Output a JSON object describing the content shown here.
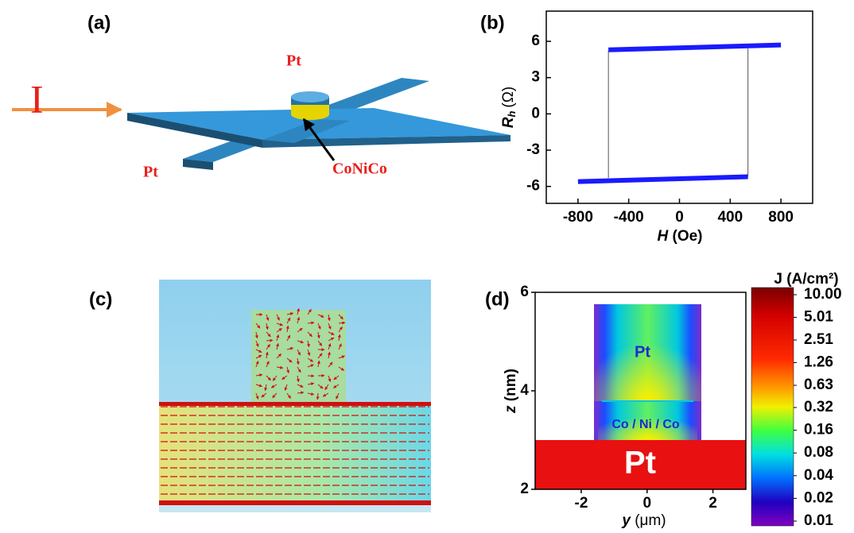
{
  "panel_labels": [
    "(a)",
    "(b)",
    "(c)",
    "(d)"
  ],
  "diagram": {
    "current_label": "I",
    "pt_top": "Pt",
    "pt_left": "Pt",
    "stack_label": "CoNiCo"
  },
  "chart_data": [
    {
      "type": "line",
      "x_label_symbol": "H",
      "x_label_unit": "(Oe)",
      "y_label_symbol": "R",
      "y_label_subscript": "h",
      "y_label_unit": "(Ω)",
      "xlim": [
        -1050,
        1050
      ],
      "xticks": [
        -800,
        -400,
        0,
        400,
        800
      ],
      "ylim": [
        -7.4,
        8.5
      ],
      "yticks": [
        -6,
        -3,
        0,
        3,
        6
      ],
      "series": [
        {
          "color": "#1a1aff",
          "width": 6,
          "x": [
            -800,
            540
          ],
          "values": [
            -5.6,
            -5.2
          ]
        },
        {
          "color": "#1a1aff",
          "width": 6,
          "x": [
            -560,
            800
          ],
          "values": [
            5.3,
            5.7
          ]
        },
        {
          "color": "#555555",
          "width": 1,
          "x": [
            540,
            540
          ],
          "values": [
            -5.2,
            5.4
          ]
        },
        {
          "color": "#555555",
          "width": 1,
          "x": [
            -560,
            -560
          ],
          "values": [
            5.3,
            -5.3
          ]
        }
      ]
    },
    {
      "type": "heatmap",
      "x_label_symbol": "y",
      "x_label_unit": "(μm)",
      "y_label_symbol": "z",
      "y_label_unit": "(nm)",
      "xlim": [
        -3.4,
        3
      ],
      "xticks": [
        -2,
        0,
        2
      ],
      "ylim": [
        2,
        6
      ],
      "yticks": [
        2,
        4,
        6
      ],
      "annotations": [
        "Pt",
        "Co / Ni / Co",
        "Pt"
      ],
      "colorbar_label": "J (A/cm²)",
      "colorbar_scale": "log",
      "clim": [
        0.01,
        10
      ],
      "colorbar_ticks": [
        {
          "value": 10,
          "label": "10.00"
        },
        5.01,
        2.51,
        1.26,
        0.63,
        0.32,
        0.16,
        0.08,
        0.04,
        0.02,
        0.01
      ]
    }
  ]
}
